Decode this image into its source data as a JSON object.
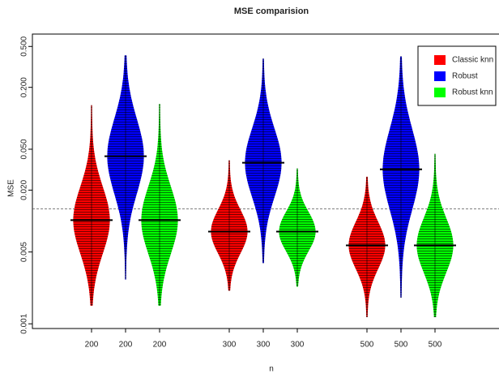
{
  "chart_data": {
    "type": "beanplot",
    "title": "MSE comparision",
    "x_label": "n",
    "y_label": "MSE",
    "categories": [
      "200",
      "300",
      "500"
    ],
    "series": [
      {
        "name": "Classic knn",
        "color": "#ff0000",
        "values": [
          0.0102,
          0.0079,
          0.0058
        ],
        "min": [
          0.0015,
          0.0021,
          0.00116
        ],
        "max": [
          0.134,
          0.039,
          0.027
        ]
      },
      {
        "name": "Robust",
        "color": "#0000ff",
        "values": [
          0.0427,
          0.0369,
          0.0319
        ],
        "min": [
          0.0027,
          0.0039,
          0.0018
        ],
        "max": [
          0.41,
          0.38,
          0.4
        ]
      },
      {
        "name": "Robust knn",
        "color": "#00ff00",
        "values": [
          0.0102,
          0.0079,
          0.0058
        ],
        "min": [
          0.0015,
          0.0023,
          0.00116
        ],
        "max": [
          0.138,
          0.0325,
          0.045
        ]
      }
    ],
    "reference_line": 0.0131,
    "log_y": true,
    "ylim": [
      0.0009,
      0.66
    ],
    "yticks": [
      {
        "value": 0.001,
        "label": "0.001"
      },
      {
        "value": 0.005,
        "label": "0.005"
      },
      {
        "value": 0.02,
        "label": "0.020"
      },
      {
        "value": 0.05,
        "label": "0.050"
      },
      {
        "value": 0.2,
        "label": "0.200"
      },
      {
        "value": 0.5,
        "label": "0.500"
      }
    ],
    "legend": "top-right"
  }
}
